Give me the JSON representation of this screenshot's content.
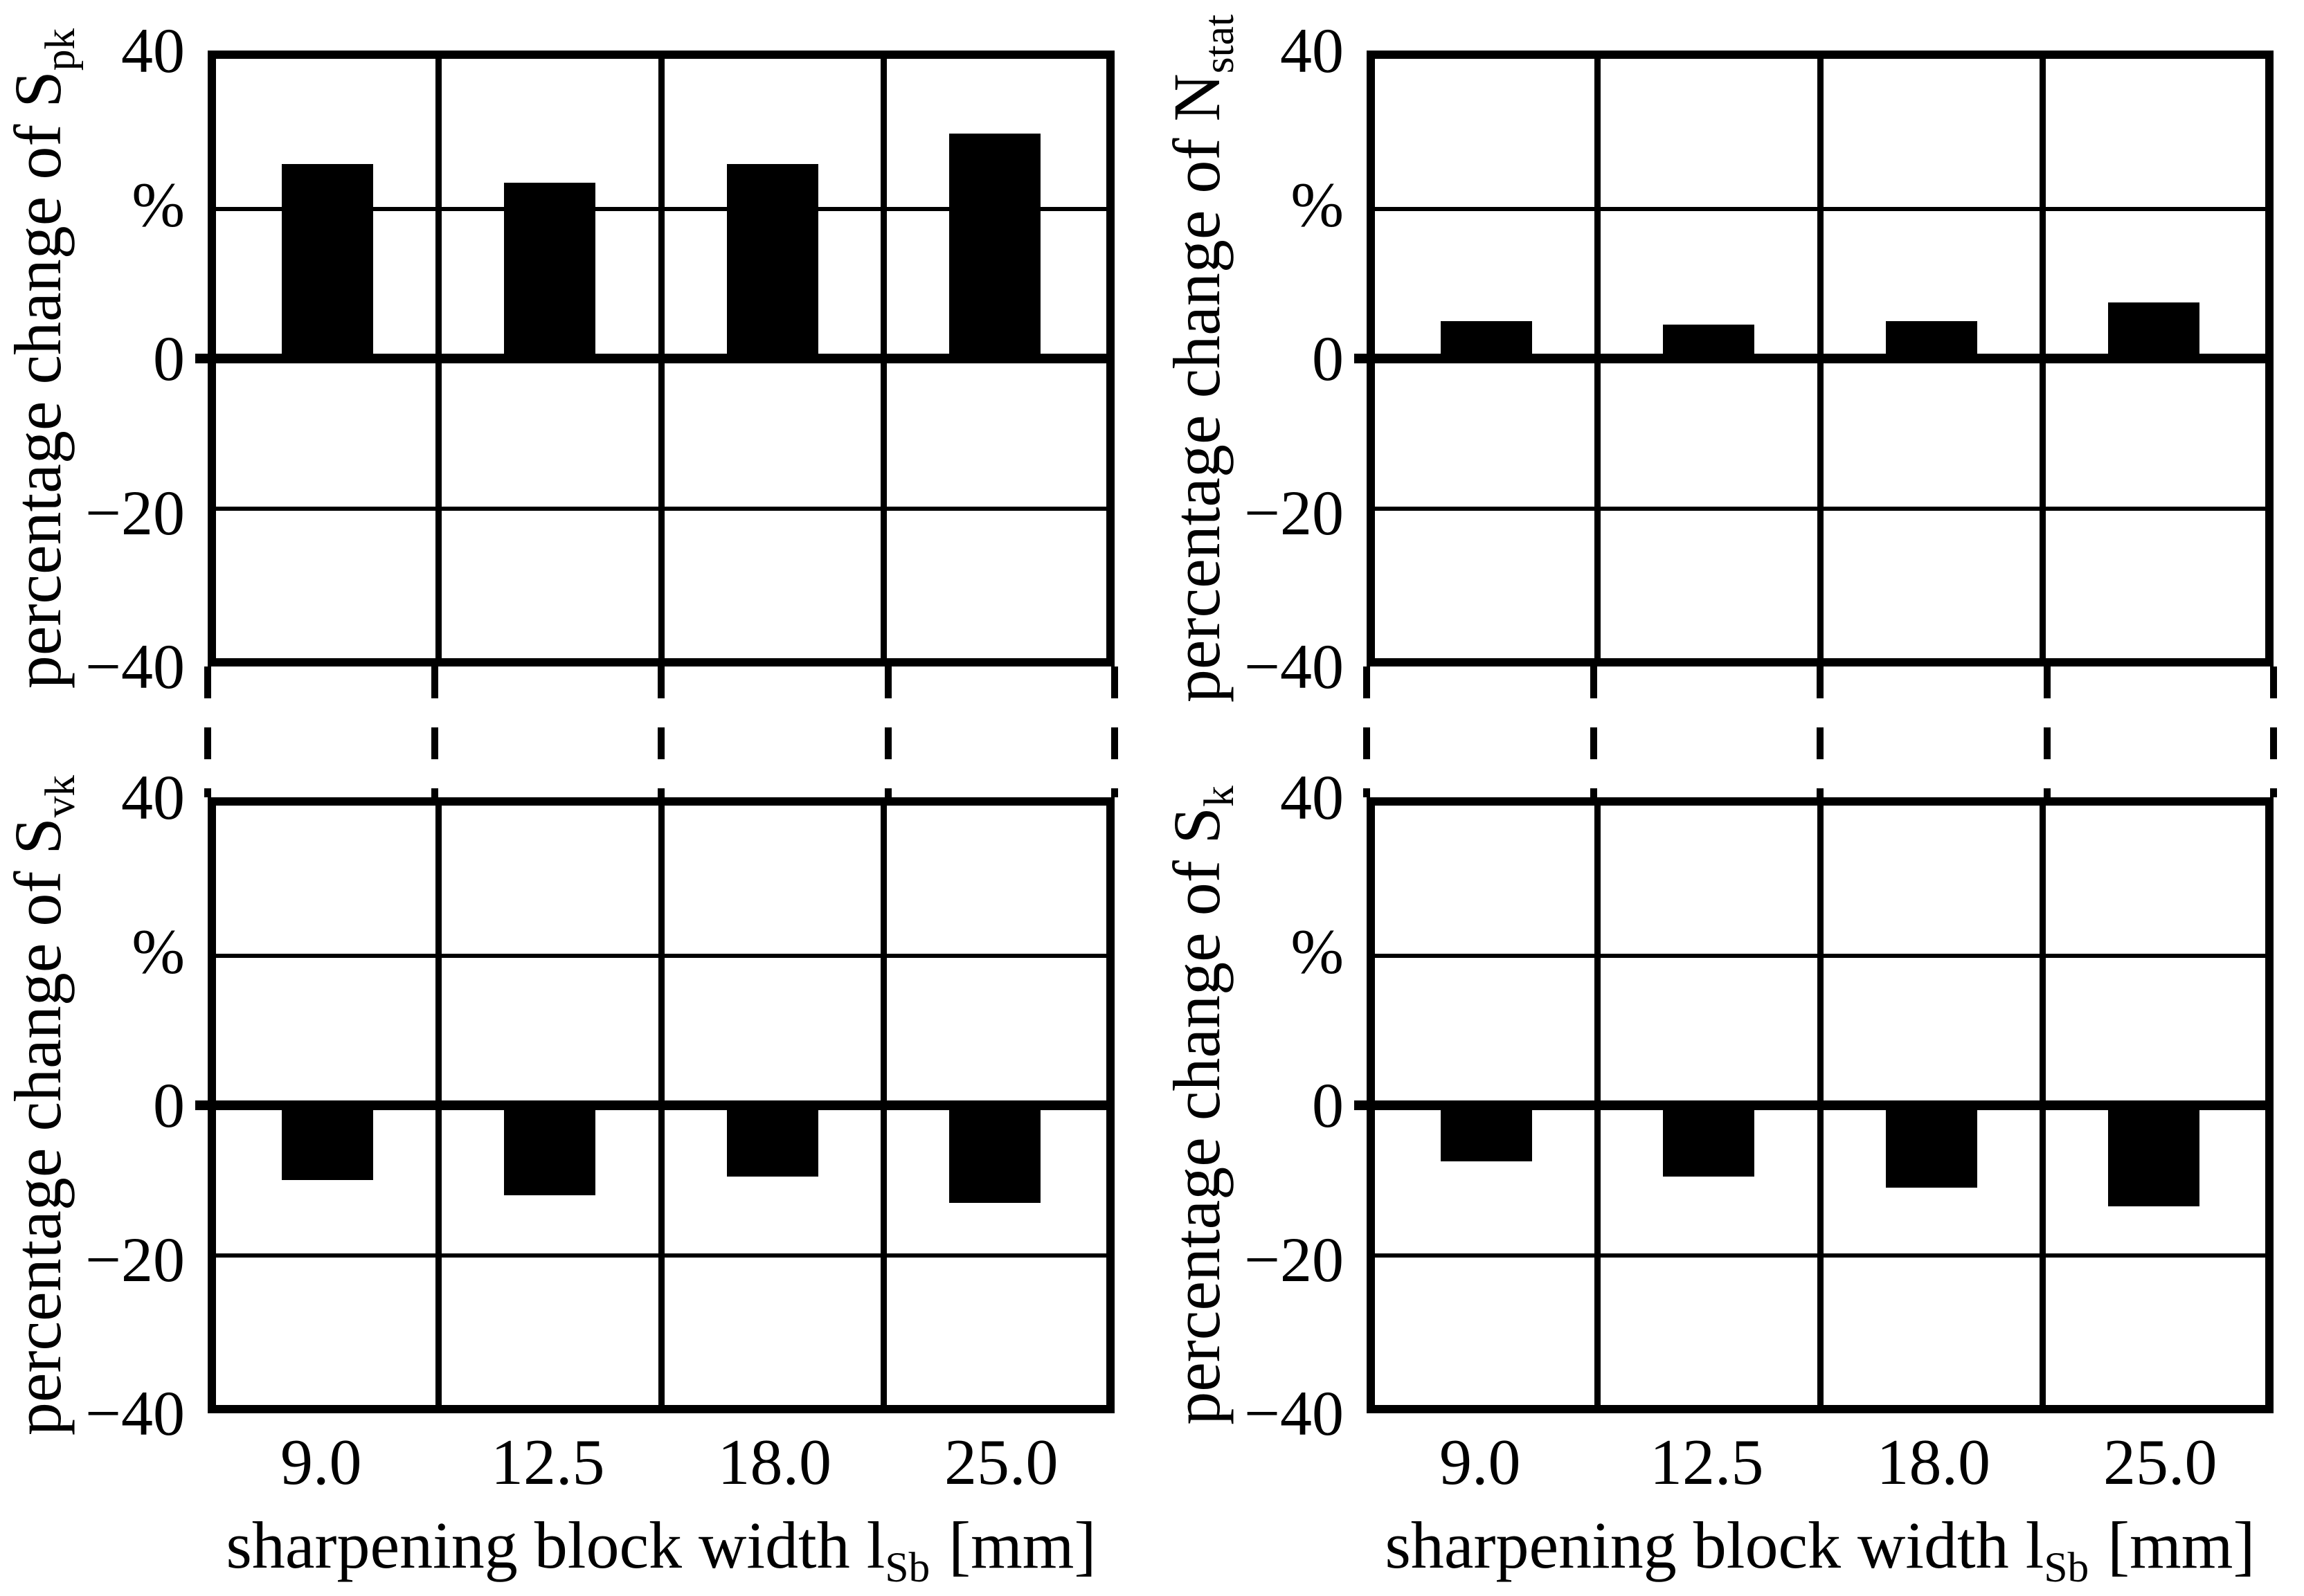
{
  "figure": {
    "background": "#ffffff",
    "y_axis": {
      "unit_label": "%",
      "tick_labels": [
        "40",
        "%",
        "0",
        "−20",
        "−40"
      ],
      "tick_values": [
        40,
        20,
        0,
        -20,
        -40
      ],
      "ylim": [
        -40,
        40
      ],
      "gridline_step": 20,
      "grid": "on"
    },
    "x_axis": {
      "title_main": "sharpening block width l",
      "title_sub": "Sb",
      "title_unit": "[mm]",
      "categories": [
        "9.0",
        "12.5",
        "18.0",
        "25.0"
      ]
    },
    "colors": {
      "bar": "#000000",
      "line": "#000000",
      "background": "#ffffff"
    },
    "legend": "none"
  },
  "chart_data": [
    {
      "type": "bar",
      "position": "top-left",
      "ylabel_main": "percentage change of S",
      "ylabel_sub": "pk",
      "ylabel_text": "percentage change of Spk",
      "categories": [
        "9.0",
        "12.5",
        "18.0",
        "25.0"
      ],
      "values": [
        26,
        23.5,
        26,
        30
      ],
      "ylim": [
        -40,
        40
      ]
    },
    {
      "type": "bar",
      "position": "top-right",
      "ylabel_main": "percentage change of N",
      "ylabel_sub": "stat",
      "ylabel_text": "percentage change of Nstat",
      "categories": [
        "9.0",
        "12.5",
        "18.0",
        "25.0"
      ],
      "values": [
        5,
        4.5,
        5,
        7.5
      ],
      "ylim": [
        -40,
        40
      ]
    },
    {
      "type": "bar",
      "position": "bottom-left",
      "ylabel_main": "percentage change of S",
      "ylabel_sub": "vk",
      "ylabel_text": "percentage change of Svk",
      "categories": [
        "9.0",
        "12.5",
        "18.0",
        "25.0"
      ],
      "values": [
        -10,
        -12,
        -9.5,
        -13
      ],
      "ylim": [
        -40,
        40
      ]
    },
    {
      "type": "bar",
      "position": "bottom-right",
      "ylabel_main": "percentage change of S",
      "ylabel_sub": "k",
      "ylabel_text": "percentage change of Sk",
      "categories": [
        "9.0",
        "12.5",
        "18.0",
        "25.0"
      ],
      "values": [
        -7.5,
        -9.5,
        -11,
        -13.5
      ],
      "ylim": [
        -40,
        40
      ]
    }
  ]
}
